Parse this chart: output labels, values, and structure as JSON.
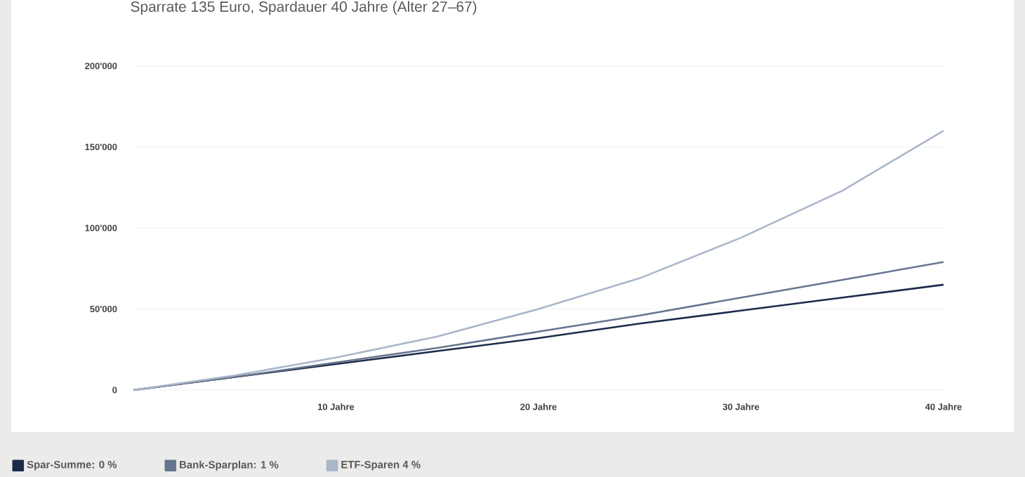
{
  "chart_data": {
    "type": "line",
    "title": "Sparrate 135 Euro, Spardauer 40 Jahre (Alter 27–67)",
    "x": [
      0,
      5,
      10,
      15,
      20,
      25,
      30,
      35,
      40
    ],
    "series": [
      {
        "name": "Spar-Summe: 0 %",
        "color": "#1c2b4a",
        "values": [
          0,
          8000,
          16000,
          24000,
          32000,
          41000,
          49000,
          57000,
          65000
        ]
      },
      {
        "name": "Bank-Sparplan: 1 %",
        "color": "#66758f",
        "values": [
          0,
          8000,
          17000,
          26000,
          36000,
          46000,
          57000,
          68000,
          79000
        ]
      },
      {
        "name": "ETF-Sparen 4 %",
        "color": "#aab6ca",
        "values": [
          0,
          9000,
          20000,
          33000,
          50000,
          69000,
          94000,
          123000,
          160000
        ]
      }
    ],
    "xlim": [
      0,
      40
    ],
    "ylim": [
      0,
      200000
    ],
    "xticks": [
      {
        "value": 10,
        "label": "10 Jahre"
      },
      {
        "value": 20,
        "label": "20 Jahre"
      },
      {
        "value": 30,
        "label": "30 Jahre"
      },
      {
        "value": 40,
        "label": "40 Jahre"
      }
    ],
    "yticks": [
      0,
      {
        "value": 50000,
        "label": "50'000"
      },
      {
        "value": 100000,
        "label": "100'000"
      },
      {
        "value": 150000,
        "label": "150'000"
      },
      {
        "value": 200000,
        "label": "200'000"
      }
    ],
    "grid": "y",
    "legend": "bottom left",
    "marker": "none",
    "line_style": "solid"
  }
}
